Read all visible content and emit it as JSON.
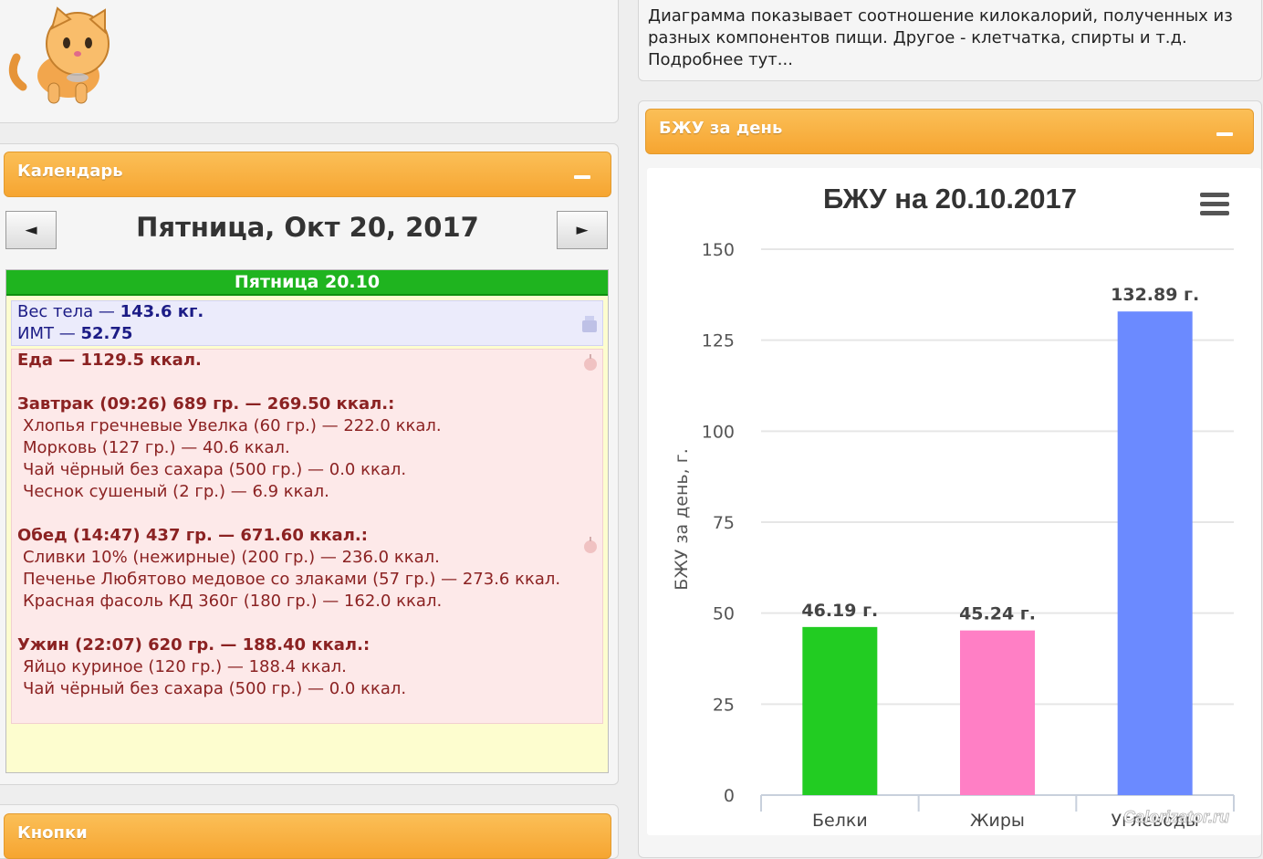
{
  "calendar": {
    "title": "Календарь",
    "prev": "◄",
    "next": "►",
    "date_heading": "Пятница, Окт 20, 2017",
    "day_header": "Пятница 20.10",
    "weight": {
      "label": "Вес тела — ",
      "value": "143.6 кг."
    },
    "bmi": {
      "label": "ИМТ — ",
      "value": "52.75"
    },
    "food_total": "Еда — 1129.5 ккал.",
    "meals": [
      {
        "title": "Завтрак (09:26) 689 гр. — 269.50 ккал.:",
        "items": [
          "Хлопья гречневые Увелка (60 гр.) — 222.0 ккал.",
          "Морковь (127 гр.) — 40.6 ккал.",
          "Чай чёрный без сахара (500 гр.) — 0.0 ккал.",
          "Чеснок сушеный (2 гр.) — 6.9 ккал."
        ]
      },
      {
        "title": "Обед (14:47) 437 гр. — 671.60 ккал.:",
        "items": [
          "Сливки 10% (нежирные) (200 гр.) — 236.0 ккал.",
          "Печенье Любятово медовое со злаками (57 гр.) — 273.6 ккал.",
          "Красная фасоль КД 360г (180 гр.) — 162.0 ккал."
        ]
      },
      {
        "title": "Ужин (22:07) 620 гр. — 188.40 ккал.:",
        "items": [
          "Яйцо куриное (120 гр.) — 188.4 ккал.",
          "Чай чёрный без сахара (500 гр.) — 0.0 ккал."
        ]
      }
    ]
  },
  "buttons_panel": {
    "title": "Кнопки"
  },
  "info_text": {
    "line1": "Диаграмма показывает соотношение килокалорий, полученных из",
    "line2": "разных компонентов пищи. Другое - клетчатка, спирты и т.д.",
    "line3": "Подробнее тут..."
  },
  "bju_panel": {
    "title": "БЖУ за день"
  },
  "watermark": "Calorizator.ru",
  "icons": {
    "mascot": "cat-mascot-icon",
    "menu": "hamburger-menu-icon",
    "scale": "scale-icon",
    "apple": "apple-icon"
  },
  "chart_data": {
    "type": "bar",
    "title": "БЖУ на 20.10.2017",
    "ylabel": "БЖУ за день, г.",
    "ylim": [
      0,
      150
    ],
    "yticks": [
      0,
      25,
      50,
      75,
      100,
      125,
      150
    ],
    "categories": [
      "Белки",
      "Жиры",
      "Углеводы"
    ],
    "values": [
      46.19,
      45.24,
      132.89
    ],
    "data_labels": [
      "46.19 г.",
      "45.24 г.",
      "132.89 г."
    ],
    "colors": [
      "#22cc22",
      "#ff7fc5",
      "#6b8aff"
    ],
    "grid": true
  }
}
